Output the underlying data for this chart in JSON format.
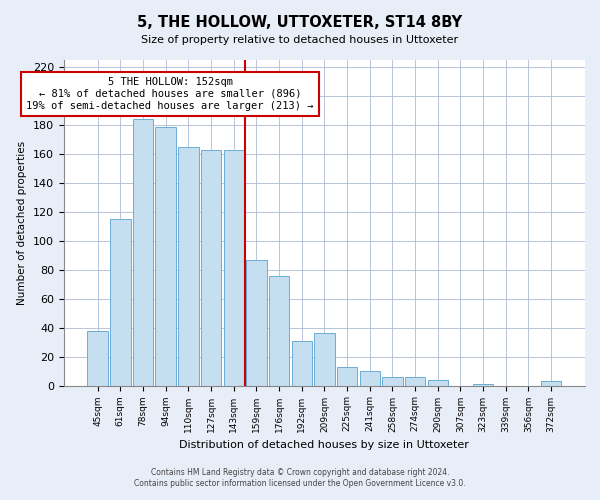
{
  "title": "5, THE HOLLOW, UTTOXETER, ST14 8BY",
  "subtitle": "Size of property relative to detached houses in Uttoxeter",
  "xlabel": "Distribution of detached houses by size in Uttoxeter",
  "ylabel": "Number of detached properties",
  "footer_line1": "Contains HM Land Registry data © Crown copyright and database right 2024.",
  "footer_line2": "Contains public sector information licensed under the Open Government Licence v3.0.",
  "bar_labels": [
    "45sqm",
    "61sqm",
    "78sqm",
    "94sqm",
    "110sqm",
    "127sqm",
    "143sqm",
    "159sqm",
    "176sqm",
    "192sqm",
    "209sqm",
    "225sqm",
    "241sqm",
    "258sqm",
    "274sqm",
    "290sqm",
    "307sqm",
    "323sqm",
    "339sqm",
    "356sqm",
    "372sqm"
  ],
  "bar_values": [
    38,
    115,
    184,
    179,
    165,
    163,
    163,
    87,
    76,
    31,
    36,
    13,
    10,
    6,
    6,
    4,
    0,
    1,
    0,
    0,
    3
  ],
  "bar_color": "#c6dff0",
  "bar_edge_color": "#6baed6",
  "highlight_line_color": "#cc0000",
  "annotation_title": "5 THE HOLLOW: 152sqm",
  "annotation_line1": "← 81% of detached houses are smaller (896)",
  "annotation_line2": "19% of semi-detached houses are larger (213) →",
  "annotation_box_color": "white",
  "annotation_box_edge_color": "#cc0000",
  "ylim": [
    0,
    225
  ],
  "yticks": [
    0,
    20,
    40,
    60,
    80,
    100,
    120,
    140,
    160,
    180,
    200,
    220
  ],
  "background_color": "#e8eef8",
  "plot_background_color": "white",
  "grid_color": "#b0bcd4"
}
